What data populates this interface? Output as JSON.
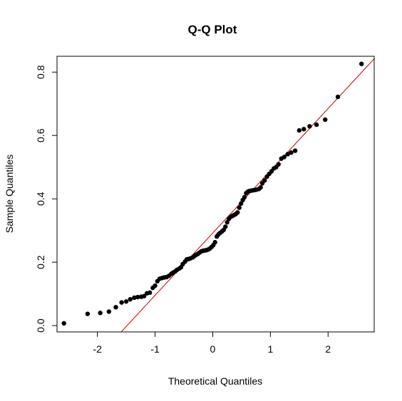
{
  "chart_data": {
    "type": "scatter",
    "title": "Q-Q Plot",
    "xlabel": "Theoretical Quantiles",
    "ylabel": "Sample Quantiles",
    "xlim": [
      -2.7,
      2.8
    ],
    "ylim": [
      -0.02,
      0.85
    ],
    "x_ticks": [
      -2,
      -1,
      0,
      1,
      2
    ],
    "x_tick_labels": [
      "-2",
      "-1",
      "0",
      "1",
      "2"
    ],
    "y_ticks": [
      0.0,
      0.2,
      0.4,
      0.6,
      0.8
    ],
    "y_tick_labels": [
      "0.0",
      "0.2",
      "0.4",
      "0.6",
      "0.8"
    ],
    "grid": false,
    "point_color": "#000000",
    "line_color": "#cc0000",
    "reference_line": {
      "intercept": 0.292,
      "slope": 0.1965
    },
    "points": [
      [
        -2.58,
        0.007
      ],
      [
        -2.17,
        0.037
      ],
      [
        -1.95,
        0.04
      ],
      [
        -1.8,
        0.044
      ],
      [
        -1.68,
        0.058
      ],
      [
        -1.58,
        0.073
      ],
      [
        -1.5,
        0.076
      ],
      [
        -1.43,
        0.083
      ],
      [
        -1.36,
        0.088
      ],
      [
        -1.3,
        0.09
      ],
      [
        -1.24,
        0.091
      ],
      [
        -1.19,
        0.093
      ],
      [
        -1.14,
        0.102
      ],
      [
        -1.09,
        0.104
      ],
      [
        -1.04,
        0.119
      ],
      [
        -1.0,
        0.126
      ],
      [
        -0.96,
        0.14
      ],
      [
        -0.92,
        0.148
      ],
      [
        -0.88,
        0.15
      ],
      [
        -0.84,
        0.152
      ],
      [
        -0.8,
        0.153
      ],
      [
        -0.76,
        0.157
      ],
      [
        -0.72,
        0.163
      ],
      [
        -0.69,
        0.167
      ],
      [
        -0.65,
        0.171
      ],
      [
        -0.62,
        0.176
      ],
      [
        -0.58,
        0.18
      ],
      [
        -0.55,
        0.184
      ],
      [
        -0.52,
        0.194
      ],
      [
        -0.48,
        0.202
      ],
      [
        -0.45,
        0.209
      ],
      [
        -0.42,
        0.21
      ],
      [
        -0.39,
        0.212
      ],
      [
        -0.35,
        0.215
      ],
      [
        -0.32,
        0.219
      ],
      [
        -0.29,
        0.223
      ],
      [
        -0.26,
        0.226
      ],
      [
        -0.23,
        0.23
      ],
      [
        -0.2,
        0.234
      ],
      [
        -0.17,
        0.236
      ],
      [
        -0.14,
        0.237
      ],
      [
        -0.11,
        0.238
      ],
      [
        -0.08,
        0.24
      ],
      [
        -0.05,
        0.243
      ],
      [
        -0.02,
        0.248
      ],
      [
        0.01,
        0.254
      ],
      [
        0.04,
        0.263
      ],
      [
        0.07,
        0.281
      ],
      [
        0.1,
        0.288
      ],
      [
        0.13,
        0.293
      ],
      [
        0.16,
        0.297
      ],
      [
        0.19,
        0.302
      ],
      [
        0.22,
        0.312
      ],
      [
        0.25,
        0.326
      ],
      [
        0.28,
        0.337
      ],
      [
        0.31,
        0.343
      ],
      [
        0.34,
        0.346
      ],
      [
        0.37,
        0.349
      ],
      [
        0.4,
        0.352
      ],
      [
        0.43,
        0.357
      ],
      [
        0.46,
        0.372
      ],
      [
        0.49,
        0.385
      ],
      [
        0.52,
        0.396
      ],
      [
        0.55,
        0.405
      ],
      [
        0.58,
        0.418
      ],
      [
        0.61,
        0.423
      ],
      [
        0.64,
        0.425
      ],
      [
        0.67,
        0.426
      ],
      [
        0.7,
        0.427
      ],
      [
        0.73,
        0.428
      ],
      [
        0.76,
        0.429
      ],
      [
        0.8,
        0.431
      ],
      [
        0.83,
        0.436
      ],
      [
        0.86,
        0.449
      ],
      [
        0.9,
        0.458
      ],
      [
        0.94,
        0.47
      ],
      [
        0.98,
        0.479
      ],
      [
        1.02,
        0.487
      ],
      [
        1.06,
        0.496
      ],
      [
        1.1,
        0.5
      ],
      [
        1.14,
        0.509
      ],
      [
        1.19,
        0.527
      ],
      [
        1.24,
        0.532
      ],
      [
        1.3,
        0.541
      ],
      [
        1.36,
        0.546
      ],
      [
        1.43,
        0.552
      ],
      [
        1.5,
        0.616
      ],
      [
        1.58,
        0.62
      ],
      [
        1.68,
        0.629
      ],
      [
        1.8,
        0.634
      ],
      [
        1.95,
        0.65
      ],
      [
        2.17,
        0.722
      ],
      [
        2.58,
        0.826
      ]
    ]
  }
}
